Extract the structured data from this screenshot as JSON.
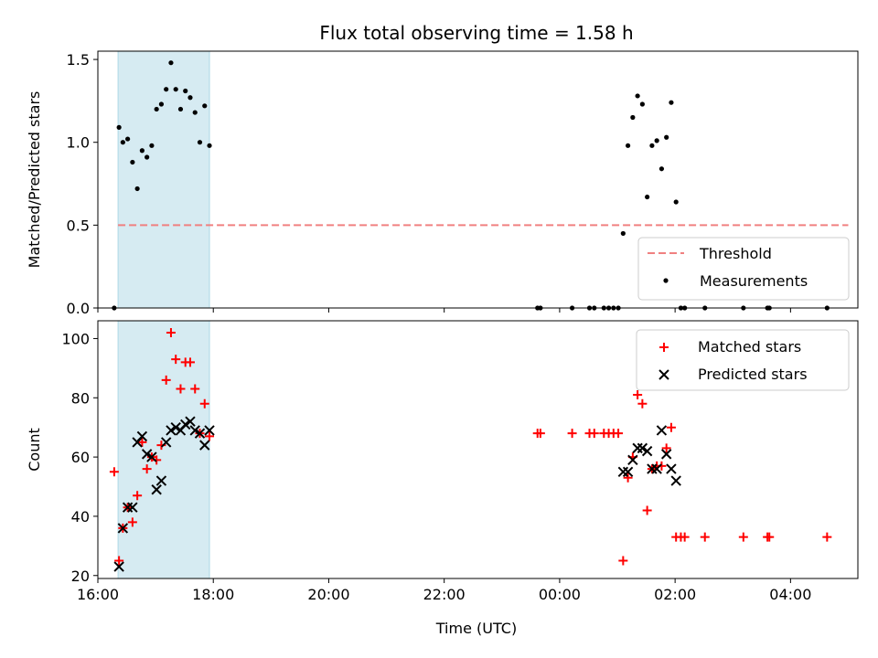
{
  "title": "Flux total observing time = 1.58 h",
  "x_label": "Time (UTC)",
  "colors": {
    "threshold": "#f08080",
    "measurements": "#000000",
    "matched": "#ff0000",
    "predicted": "#000000",
    "shade": "#add8e6"
  },
  "chart_data": [
    {
      "type": "scatter",
      "panel": "top",
      "ylabel": "Matched/Predicted stars",
      "xlim": [
        "16:00",
        "05:10"
      ],
      "ylim": [
        0,
        1.55
      ],
      "y_ticks": [
        0.0,
        0.5,
        1.0,
        1.5
      ],
      "y_tick_labels": [
        "0.0",
        "0.5",
        "1.0",
        "1.5"
      ],
      "x_ticks": [
        "16:00",
        "18:00",
        "20:00",
        "22:00",
        "00:00",
        "02:00",
        "04:00"
      ],
      "x_tick_labels": [],
      "shaded_span": [
        "16:21",
        "17:56"
      ],
      "legend": {
        "placement": "lower right",
        "entries": [
          "Threshold",
          "Measurements"
        ]
      },
      "series": [
        {
          "name": "Threshold",
          "style": "dashed-line",
          "x": [
            "16:21",
            "05:00"
          ],
          "y": [
            0.5,
            0.5
          ]
        },
        {
          "name": "Measurements",
          "style": "dot",
          "x": [
            "16:17",
            "16:22",
            "16:26",
            "16:31",
            "16:36",
            "16:41",
            "16:46",
            "16:51",
            "16:56",
            "17:01",
            "17:06",
            "17:11",
            "17:16",
            "17:21",
            "17:26",
            "17:31",
            "17:36",
            "17:41",
            "17:46",
            "17:51",
            "17:56",
            "23:37",
            "23:40",
            "00:13",
            "00:31",
            "00:36",
            "00:46",
            "00:51",
            "00:56",
            "01:01",
            "01:06",
            "01:11",
            "01:16",
            "01:21",
            "01:26",
            "01:31",
            "01:36",
            "01:41",
            "01:46",
            "01:51",
            "01:56",
            "02:01",
            "02:06",
            "02:10",
            "02:31",
            "03:11",
            "03:36",
            "03:38",
            "04:38"
          ],
          "y": [
            0.0,
            1.09,
            1.0,
            1.02,
            0.88,
            0.72,
            0.95,
            0.91,
            0.98,
            1.2,
            1.23,
            1.32,
            1.48,
            1.32,
            1.2,
            1.31,
            1.27,
            1.18,
            1.0,
            1.22,
            0.98,
            0.0,
            0.0,
            0.0,
            0.0,
            0.0,
            0.0,
            0.0,
            0.0,
            0.0,
            0.45,
            0.98,
            1.15,
            1.28,
            1.23,
            0.67,
            0.98,
            1.01,
            0.84,
            1.03,
            1.24,
            0.64,
            0.0,
            0.0,
            0.0,
            0.0,
            0.0,
            0.0,
            0.0
          ]
        }
      ]
    },
    {
      "type": "scatter",
      "panel": "bottom",
      "ylabel": "Count",
      "xlim": [
        "16:00",
        "05:10"
      ],
      "ylim": [
        19,
        106
      ],
      "y_ticks": [
        20,
        40,
        60,
        80,
        100
      ],
      "y_tick_labels": [
        "20",
        "40",
        "60",
        "80",
        "100"
      ],
      "x_ticks": [
        "16:00",
        "18:00",
        "20:00",
        "22:00",
        "00:00",
        "02:00",
        "04:00"
      ],
      "x_tick_labels": [
        "16:00",
        "18:00",
        "20:00",
        "22:00",
        "00:00",
        "02:00",
        "04:00"
      ],
      "shaded_span": [
        "16:21",
        "17:56"
      ],
      "legend": {
        "placement": "upper right",
        "entries": [
          "Matched stars",
          "Predicted stars"
        ]
      },
      "series": [
        {
          "name": "Matched stars",
          "style": "plus",
          "x": [
            "16:17",
            "16:22",
            "16:26",
            "16:31",
            "16:36",
            "16:41",
            "16:46",
            "16:51",
            "16:56",
            "17:01",
            "17:06",
            "17:11",
            "17:16",
            "17:21",
            "17:26",
            "17:31",
            "17:36",
            "17:41",
            "17:46",
            "17:51",
            "17:56",
            "23:37",
            "23:40",
            "00:13",
            "00:31",
            "00:36",
            "00:46",
            "00:51",
            "00:56",
            "01:01",
            "01:06",
            "01:11",
            "01:16",
            "01:21",
            "01:26",
            "01:31",
            "01:36",
            "01:41",
            "01:46",
            "01:51",
            "01:56",
            "02:01",
            "02:06",
            "02:10",
            "02:31",
            "03:11",
            "03:36",
            "03:38",
            "04:38"
          ],
          "y": [
            55,
            25,
            36,
            43,
            38,
            47,
            65,
            56,
            60,
            59,
            64,
            86,
            102,
            93,
            83,
            92,
            92,
            83,
            68,
            78,
            67,
            68,
            68,
            68,
            68,
            68,
            68,
            68,
            68,
            68,
            25,
            53,
            60,
            81,
            78,
            42,
            56,
            57,
            57,
            63,
            70,
            33,
            33,
            33,
            33,
            33,
            33,
            33,
            33
          ]
        },
        {
          "name": "Predicted stars",
          "style": "x",
          "x": [
            "16:22",
            "16:26",
            "16:31",
            "16:36",
            "16:41",
            "16:46",
            "16:51",
            "16:56",
            "17:01",
            "17:06",
            "17:11",
            "17:16",
            "17:21",
            "17:26",
            "17:31",
            "17:36",
            "17:41",
            "17:46",
            "17:51",
            "17:56",
            "01:06",
            "01:11",
            "01:16",
            "01:21",
            "01:26",
            "01:31",
            "01:36",
            "01:41",
            "01:46",
            "01:51",
            "01:56",
            "02:01"
          ],
          "y": [
            23,
            36,
            43,
            43,
            65,
            67,
            61,
            60,
            49,
            52,
            65,
            69,
            70,
            69,
            71,
            72,
            69,
            68,
            64,
            69,
            55,
            55,
            59,
            63,
            63,
            62,
            56,
            56,
            69,
            61,
            56,
            52
          ]
        }
      ]
    }
  ]
}
